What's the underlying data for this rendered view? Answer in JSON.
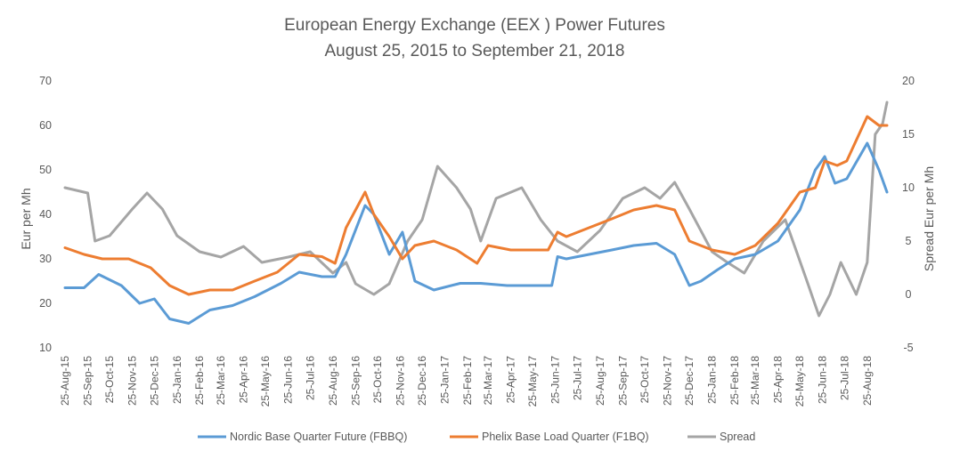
{
  "chart_data": {
    "type": "line",
    "title": "European Energy Exchange (EEX ) Power Futures",
    "subtitle": "August 25, 2015 to September 21, 2018",
    "ylabel": "Eur per Mh",
    "y2label": "Spread Eur per Mh",
    "ylim": [
      10,
      70
    ],
    "y2lim": [
      -5,
      20
    ],
    "yticks": [
      10,
      20,
      30,
      40,
      50,
      60,
      70
    ],
    "y2ticks": [
      -5,
      0,
      5,
      10,
      15,
      20
    ],
    "x_start": "2015-08-25",
    "x_end": "2018-09-21",
    "x_ticks": [
      "25-Aug-15",
      "25-Sep-15",
      "25-Oct-15",
      "25-Nov-15",
      "25-Dec-15",
      "25-Jan-16",
      "25-Feb-16",
      "25-Mar-16",
      "25-Apr-16",
      "25-May-16",
      "25-Jun-16",
      "25-Jul-16",
      "25-Aug-16",
      "25-Sep-16",
      "25-Oct-16",
      "25-Nov-16",
      "25-Dec-16",
      "25-Jan-17",
      "25-Feb-17",
      "25-Mar-17",
      "25-Apr-17",
      "25-May-17",
      "25-Jun-17",
      "25-Jul-17",
      "25-Aug-17",
      "25-Sep-17",
      "25-Oct-17",
      "25-Nov-17",
      "25-Dec-17",
      "25-Jan-18",
      "25-Feb-18",
      "25-Mar-18",
      "25-Apr-18",
      "25-May-18",
      "25-Jun-18",
      "25-Jul-18",
      "25-Aug-18"
    ],
    "grid": false,
    "legend": "bottom",
    "series": [
      {
        "name": "Nordic Base Quarter Future (FBBQ)",
        "axis": "left",
        "color": "#5b9bd5",
        "x": [
          "2015-08-25",
          "2015-09-20",
          "2015-10-10",
          "2015-11-10",
          "2015-12-05",
          "2015-12-25",
          "2016-01-15",
          "2016-02-10",
          "2016-03-10",
          "2016-04-10",
          "2016-05-10",
          "2016-06-15",
          "2016-07-10",
          "2016-08-10",
          "2016-08-28",
          "2016-09-12",
          "2016-10-08",
          "2016-10-20",
          "2016-11-10",
          "2016-11-28",
          "2016-12-15",
          "2017-01-10",
          "2017-02-15",
          "2017-03-15",
          "2017-04-20",
          "2017-05-20",
          "2017-06-20",
          "2017-06-28",
          "2017-07-10",
          "2017-08-10",
          "2017-09-10",
          "2017-10-10",
          "2017-11-10",
          "2017-12-05",
          "2017-12-25",
          "2018-01-10",
          "2018-02-01",
          "2018-02-25",
          "2018-03-25",
          "2018-04-25",
          "2018-05-25",
          "2018-06-15",
          "2018-06-28",
          "2018-07-12",
          "2018-07-28",
          "2018-08-25",
          "2018-09-10",
          "2018-09-21"
        ],
        "y": [
          23.5,
          23.5,
          26.5,
          24,
          20,
          21,
          16.5,
          15.5,
          18.5,
          19.5,
          21.5,
          24.5,
          27,
          26,
          26,
          31,
          42,
          40,
          31,
          36,
          25,
          23,
          24.5,
          24.5,
          24,
          24,
          24,
          30.5,
          30,
          31,
          32,
          33,
          33.5,
          31,
          24,
          25,
          27.5,
          30,
          31,
          34,
          41,
          50,
          53,
          47,
          48,
          56,
          50,
          45
        ]
      },
      {
        "name": "Phelix Base Load Quarter (F1BQ)",
        "axis": "left",
        "color": "#ed7d31",
        "x": [
          "2015-08-25",
          "2015-09-20",
          "2015-10-15",
          "2015-11-20",
          "2015-12-20",
          "2016-01-15",
          "2016-02-10",
          "2016-03-10",
          "2016-04-10",
          "2016-05-10",
          "2016-06-10",
          "2016-07-10",
          "2016-08-10",
          "2016-08-28",
          "2016-09-12",
          "2016-10-08",
          "2016-10-20",
          "2016-11-10",
          "2016-11-28",
          "2016-12-15",
          "2017-01-10",
          "2017-02-10",
          "2017-03-10",
          "2017-03-25",
          "2017-04-25",
          "2017-05-25",
          "2017-06-15",
          "2017-06-28",
          "2017-07-10",
          "2017-08-10",
          "2017-09-10",
          "2017-10-10",
          "2017-11-10",
          "2017-12-05",
          "2017-12-25",
          "2018-01-25",
          "2018-02-25",
          "2018-03-25",
          "2018-04-25",
          "2018-05-25",
          "2018-06-15",
          "2018-06-28",
          "2018-07-15",
          "2018-07-28",
          "2018-08-25",
          "2018-09-10",
          "2018-09-21"
        ],
        "y": [
          32.5,
          31,
          30,
          30,
          28,
          24,
          22,
          23,
          23,
          25,
          27,
          31,
          30.5,
          29,
          37,
          45,
          40,
          35,
          30,
          33,
          34,
          32,
          29,
          33,
          32,
          32,
          32,
          36,
          35,
          37,
          39,
          41,
          42,
          41,
          34,
          32,
          31,
          33,
          38,
          45,
          46,
          52,
          51,
          52,
          62,
          60,
          60
        ]
      },
      {
        "name": "Spread",
        "axis": "right",
        "color": "#a5a5a5",
        "x": [
          "2015-08-25",
          "2015-09-25",
          "2015-10-05",
          "2015-10-25",
          "2015-11-25",
          "2015-12-15",
          "2016-01-05",
          "2016-01-25",
          "2016-02-25",
          "2016-03-25",
          "2016-04-25",
          "2016-05-20",
          "2016-06-25",
          "2016-07-25",
          "2016-08-25",
          "2016-09-12",
          "2016-09-25",
          "2016-10-20",
          "2016-11-10",
          "2016-12-05",
          "2016-12-25",
          "2017-01-15",
          "2017-02-10",
          "2017-03-01",
          "2017-03-15",
          "2017-04-05",
          "2017-05-10",
          "2017-06-05",
          "2017-06-28",
          "2017-07-25",
          "2017-08-25",
          "2017-09-25",
          "2017-10-25",
          "2017-11-15",
          "2017-12-05",
          "2017-12-25",
          "2018-01-25",
          "2018-02-15",
          "2018-03-10",
          "2018-04-05",
          "2018-05-05",
          "2018-06-05",
          "2018-06-20",
          "2018-07-05",
          "2018-07-20",
          "2018-08-10",
          "2018-08-25",
          "2018-09-05",
          "2018-09-15",
          "2018-09-21"
        ],
        "y": [
          10,
          9.5,
          5,
          5.5,
          8,
          9.5,
          8,
          5.5,
          4,
          3.5,
          4.5,
          3,
          3.5,
          4,
          2,
          3,
          1,
          0,
          1,
          5,
          7,
          12,
          10,
          8,
          5,
          9,
          10,
          7,
          5,
          4,
          6,
          9,
          10,
          9,
          10.5,
          8,
          4,
          3,
          2,
          5,
          7,
          1,
          -2,
          0,
          3,
          0,
          3,
          15,
          16,
          18
        ]
      }
    ]
  }
}
